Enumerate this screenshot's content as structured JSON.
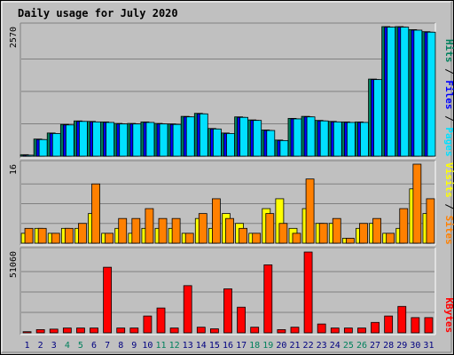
{
  "chart_data": {
    "type": "bar",
    "title": "Daily usage for July 2020",
    "categories": [
      "1",
      "2",
      "3",
      "4",
      "5",
      "6",
      "7",
      "8",
      "9",
      "10",
      "11",
      "12",
      "13",
      "14",
      "15",
      "16",
      "17",
      "18",
      "19",
      "20",
      "21",
      "22",
      "23",
      "24",
      "25",
      "26",
      "27",
      "28",
      "29",
      "30",
      "31"
    ],
    "weekend_days": [
      "4",
      "5",
      "11",
      "12",
      "18",
      "19",
      "25",
      "26"
    ],
    "colors": {
      "hits": "#00805c",
      "files": "#0000ff",
      "pages": "#00e0ff",
      "visits": "#ffff00",
      "sites": "#ff8000",
      "kbytes": "#ff0000",
      "title": "#0000ff",
      "weekday_label": "#000080",
      "weekend_label": "#00805c",
      "panel_bg": "#c0c0c0"
    },
    "panels": [
      {
        "id": "hits-files-pages",
        "ymax": 2570,
        "ymax_label": "2570",
        "legend": [
          {
            "text": "Pages",
            "color": "#00e0ff"
          },
          {
            "text": " / ",
            "color": "#000000"
          },
          {
            "text": "Files",
            "color": "#0000ff"
          },
          {
            "text": " / ",
            "color": "#000000"
          },
          {
            "text": "Hits",
            "color": "#00805c"
          }
        ],
        "series": [
          {
            "name": "Hits",
            "color": "#00805c",
            "values": [
              30,
              340,
              460,
              630,
              700,
              690,
              680,
              650,
              650,
              680,
              650,
              640,
              790,
              850,
              550,
              460,
              780,
              720,
              520,
              320,
              750,
              790,
              710,
              690,
              680,
              680,
              1530,
              2570,
              2570,
              2510,
              2470
            ]
          },
          {
            "name": "Files",
            "color": "#0000ff",
            "values": [
              20,
              330,
              450,
              620,
              690,
              680,
              670,
              640,
              640,
              670,
              640,
              630,
              780,
              840,
              540,
              450,
              770,
              710,
              510,
              310,
              740,
              780,
              700,
              680,
              670,
              670,
              1520,
              2560,
              2560,
              2500,
              2460
            ]
          },
          {
            "name": "Pages",
            "color": "#00e0ff",
            "values": [
              20,
              330,
              450,
              620,
              690,
              680,
              670,
              640,
              640,
              670,
              640,
              630,
              780,
              840,
              540,
              450,
              770,
              710,
              510,
              310,
              740,
              780,
              700,
              680,
              670,
              670,
              1520,
              2560,
              2560,
              2500,
              2460
            ]
          }
        ]
      },
      {
        "id": "visits-sites",
        "ymax": 16,
        "ymax_label": "16",
        "legend": [
          {
            "text": "Sites",
            "color": "#ff8000"
          },
          {
            "text": " / ",
            "color": "#000000"
          },
          {
            "text": "Visits",
            "color": "#ffff00"
          }
        ],
        "series": [
          {
            "name": "Visits",
            "color": "#ffff00",
            "values": [
              2,
              3,
              2,
              3,
              3,
              6,
              2,
              3,
              2,
              3,
              3,
              3,
              2,
              5,
              3,
              6,
              4,
              2,
              7,
              9,
              3,
              7,
              4,
              4,
              1,
              3,
              4,
              2,
              3,
              11,
              6
            ]
          },
          {
            "name": "Sites",
            "color": "#ff8000",
            "values": [
              3,
              3,
              2,
              3,
              4,
              12,
              2,
              5,
              5,
              7,
              5,
              5,
              2,
              6,
              9,
              5,
              3,
              2,
              6,
              4,
              2,
              13,
              4,
              5,
              1,
              4,
              5,
              2,
              7,
              16,
              9
            ]
          }
        ]
      },
      {
        "id": "kbytes",
        "ymax": 51060,
        "ymax_label": "51060",
        "legend": [
          {
            "text": "KBytes",
            "color": "#ff0000"
          }
        ],
        "series": [
          {
            "name": "KBytes",
            "color": "#ff0000",
            "values": [
              700,
              2000,
              2300,
              3000,
              3000,
              3000,
              41000,
              3000,
              3000,
              10500,
              15500,
              3000,
              29500,
              3500,
              2500,
              27500,
              16000,
              3500,
              42500,
              2000,
              3500,
              50500,
              5500,
              3000,
              3000,
              3000,
              6500,
              10500,
              16500,
              9500,
              9500
            ]
          }
        ]
      }
    ]
  }
}
